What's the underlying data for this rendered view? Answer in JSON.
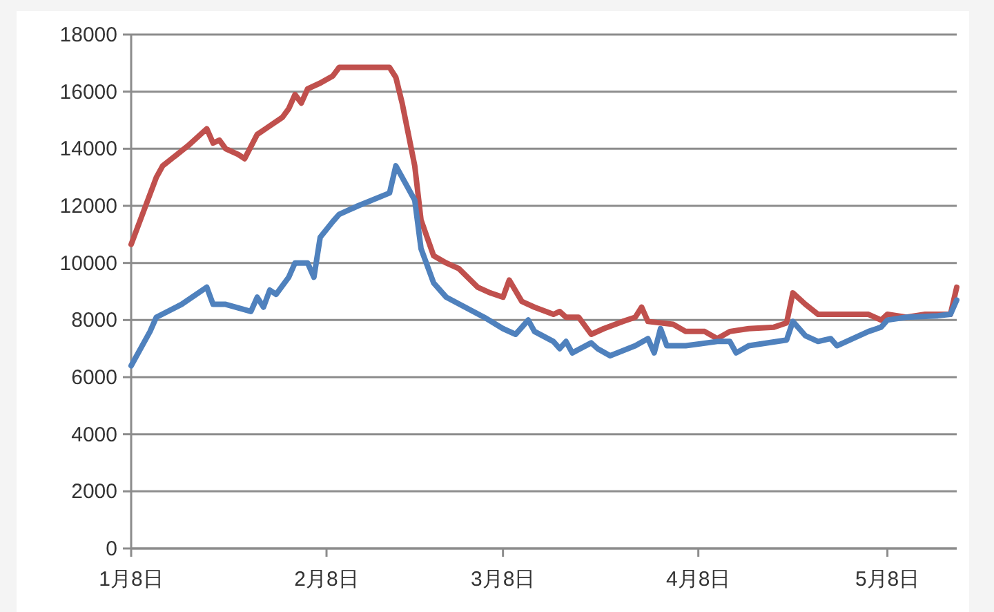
{
  "chart_data": {
    "type": "line",
    "series": [
      {
        "color": "#c0504d",
        "x": [
          "--01-08",
          "--01-12",
          "--01-13",
          "--01-17",
          "--01-20",
          "--01-21",
          "--01-22",
          "--01-23",
          "--01-25",
          "--01-26",
          "--01-28",
          "--01-29",
          "--01-30",
          "--02-01",
          "--02-02",
          "--02-03",
          "--02-04",
          "--02-05",
          "--02-07",
          "--02-09",
          "--02-10",
          "--02-18",
          "--02-19",
          "--02-20",
          "--02-22",
          "--02-23",
          "--02-25",
          "--02-27",
          "--03-01",
          "--03-04",
          "--03-06",
          "--03-08",
          "--03-09",
          "--03-11",
          "--03-13",
          "--03-16",
          "--03-17",
          "--03-18",
          "--03-20",
          "--03-22",
          "--03-24",
          "--03-27",
          "--03-29",
          "--03-30",
          "--03-31",
          "--04-04",
          "--04-06",
          "--04-09",
          "--04-11",
          "--04-13",
          "--04-16",
          "--04-20",
          "--04-22",
          "--04-23",
          "--04-25",
          "--04-27",
          "--05-05",
          "--05-07",
          "--05-08",
          "--05-11",
          "--05-14",
          "--05-18",
          "--05-19"
        ],
        "values": [
          10650,
          13000,
          13400,
          14100,
          14700,
          14200,
          14300,
          14000,
          13800,
          13650,
          14500,
          14650,
          14800,
          15100,
          15400,
          15900,
          15600,
          16100,
          16300,
          16550,
          16850,
          16850,
          16500,
          15600,
          13400,
          11500,
          10250,
          10000,
          9800,
          9150,
          8950,
          8800,
          9400,
          8650,
          8450,
          8200,
          8300,
          8100,
          8100,
          7500,
          7700,
          7950,
          8100,
          8450,
          7950,
          7850,
          7600,
          7600,
          7350,
          7600,
          7700,
          7750,
          7900,
          8950,
          8550,
          8200,
          8200,
          8000,
          8200,
          8100,
          8200,
          8200,
          9150
        ]
      },
      {
        "color": "#4f81bd",
        "x": [
          "--01-08",
          "--01-11",
          "--01-12",
          "--01-16",
          "--01-20",
          "--01-21",
          "--01-23",
          "--01-27",
          "--01-28",
          "--01-29",
          "--01-30",
          "--01-31",
          "--02-02",
          "--02-03",
          "--02-05",
          "--02-06",
          "--02-07",
          "--02-09",
          "--02-10",
          "--02-13",
          "--02-18",
          "--02-19",
          "--02-22",
          "--02-23",
          "--02-25",
          "--02-27",
          "--03-02",
          "--03-05",
          "--03-08",
          "--03-10",
          "--03-12",
          "--03-13",
          "--03-16",
          "--03-17",
          "--03-18",
          "--03-19",
          "--03-22",
          "--03-23",
          "--03-25",
          "--03-29",
          "--03-31",
          "--04-01",
          "--04-02",
          "--04-03",
          "--04-06",
          "--04-11",
          "--04-13",
          "--04-14",
          "--04-16",
          "--04-22",
          "--04-23",
          "--04-25",
          "--04-27",
          "--04-29",
          "--04-30",
          "--05-05",
          "--05-07",
          "--05-08",
          "--05-11",
          "--05-16",
          "--05-18",
          "--05-19"
        ],
        "values": [
          6400,
          7600,
          8100,
          8550,
          9150,
          8550,
          8550,
          8300,
          8800,
          8450,
          9050,
          8900,
          9500,
          10000,
          10000,
          9500,
          10900,
          11450,
          11700,
          12000,
          12450,
          13400,
          12200,
          10500,
          9300,
          8800,
          8450,
          8100,
          7700,
          7500,
          8000,
          7600,
          7250,
          7000,
          7250,
          6850,
          7200,
          7000,
          6750,
          7100,
          7350,
          6850,
          7700,
          7100,
          7100,
          7250,
          7250,
          6850,
          7100,
          7300,
          7950,
          7450,
          7250,
          7350,
          7100,
          7600,
          7750,
          8000,
          8100,
          8150,
          8200,
          8700
        ]
      }
    ],
    "xlim": [
      "--01-08",
      "--05-19"
    ],
    "xticks": [
      {
        "value": "--01-08",
        "label": "1月8日"
      },
      {
        "value": "--02-08",
        "label": "2月8日"
      },
      {
        "value": "--03-08",
        "label": "3月8日"
      },
      {
        "value": "--04-08",
        "label": "4月8日"
      },
      {
        "value": "--05-08",
        "label": "5月8日"
      }
    ],
    "ylim": [
      0,
      18000
    ],
    "yticks": [
      0,
      2000,
      4000,
      6000,
      8000,
      10000,
      12000,
      14000,
      16000,
      18000
    ],
    "grid": "y",
    "marker": "none",
    "line_style": "solid"
  }
}
